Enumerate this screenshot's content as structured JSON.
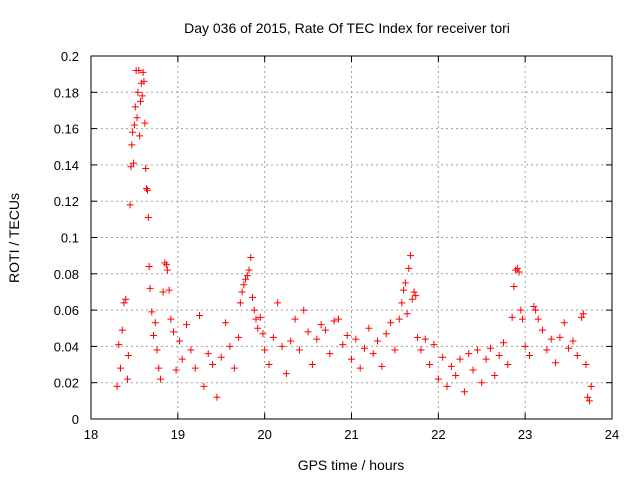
{
  "chart_data": {
    "type": "scatter",
    "title": "Day 036 of 2015, Rate Of TEC Index for receiver tori",
    "xlabel": "GPS time / hours",
    "ylabel": "ROTI / TECUs",
    "xlim": [
      18,
      24
    ],
    "ylim": [
      0,
      0.2
    ],
    "xticks": [
      "18",
      "19",
      "20",
      "21",
      "22",
      "23",
      "24"
    ],
    "yticks": [
      "0",
      "0.02",
      "0.04",
      "0.06",
      "0.08",
      "0.1",
      "0.12",
      "0.14",
      "0.16",
      "0.18",
      "0.2"
    ],
    "grid": true,
    "marker": "+",
    "marker_color": "#ff0000",
    "series": [
      {
        "name": "ROTI",
        "points": [
          [
            18.3,
            0.018
          ],
          [
            18.32,
            0.041
          ],
          [
            18.34,
            0.028
          ],
          [
            18.36,
            0.049
          ],
          [
            18.38,
            0.064
          ],
          [
            18.4,
            0.066
          ],
          [
            18.42,
            0.022
          ],
          [
            18.43,
            0.035
          ],
          [
            18.45,
            0.118
          ],
          [
            18.46,
            0.139
          ],
          [
            18.47,
            0.151
          ],
          [
            18.48,
            0.158
          ],
          [
            18.49,
            0.141
          ],
          [
            18.5,
            0.162
          ],
          [
            18.51,
            0.172
          ],
          [
            18.52,
            0.192
          ],
          [
            18.53,
            0.166
          ],
          [
            18.54,
            0.18
          ],
          [
            18.55,
            0.192
          ],
          [
            18.56,
            0.156
          ],
          [
            18.57,
            0.175
          ],
          [
            18.58,
            0.185
          ],
          [
            18.59,
            0.178
          ],
          [
            18.6,
            0.191
          ],
          [
            18.61,
            0.186
          ],
          [
            18.62,
            0.163
          ],
          [
            18.63,
            0.138
          ],
          [
            18.64,
            0.127
          ],
          [
            18.65,
            0.126
          ],
          [
            18.66,
            0.111
          ],
          [
            18.67,
            0.084
          ],
          [
            18.68,
            0.072
          ],
          [
            18.7,
            0.059
          ],
          [
            18.72,
            0.046
          ],
          [
            18.74,
            0.053
          ],
          [
            18.76,
            0.038
          ],
          [
            18.78,
            0.028
          ],
          [
            18.8,
            0.022
          ],
          [
            18.83,
            0.07
          ],
          [
            18.85,
            0.086
          ],
          [
            18.87,
            0.085
          ],
          [
            18.88,
            0.082
          ],
          [
            18.9,
            0.071
          ],
          [
            18.92,
            0.055
          ],
          [
            18.95,
            0.048
          ],
          [
            18.98,
            0.027
          ],
          [
            19.02,
            0.043
          ],
          [
            19.05,
            0.033
          ],
          [
            19.1,
            0.052
          ],
          [
            19.15,
            0.038
          ],
          [
            19.2,
            0.028
          ],
          [
            19.25,
            0.057
          ],
          [
            19.3,
            0.018
          ],
          [
            19.35,
            0.036
          ],
          [
            19.4,
            0.03
          ],
          [
            19.45,
            0.012
          ],
          [
            19.5,
            0.034
          ],
          [
            19.55,
            0.053
          ],
          [
            19.6,
            0.04
          ],
          [
            19.65,
            0.028
          ],
          [
            19.7,
            0.045
          ],
          [
            19.72,
            0.064
          ],
          [
            19.74,
            0.07
          ],
          [
            19.76,
            0.074
          ],
          [
            19.78,
            0.077
          ],
          [
            19.8,
            0.079
          ],
          [
            19.82,
            0.082
          ],
          [
            19.84,
            0.089
          ],
          [
            19.86,
            0.067
          ],
          [
            19.88,
            0.06
          ],
          [
            19.9,
            0.055
          ],
          [
            19.92,
            0.05
          ],
          [
            19.95,
            0.056
          ],
          [
            19.98,
            0.047
          ],
          [
            20.0,
            0.038
          ],
          [
            20.05,
            0.03
          ],
          [
            20.1,
            0.045
          ],
          [
            20.15,
            0.064
          ],
          [
            20.2,
            0.04
          ],
          [
            20.25,
            0.025
          ],
          [
            20.3,
            0.043
          ],
          [
            20.35,
            0.055
          ],
          [
            20.4,
            0.038
          ],
          [
            20.45,
            0.06
          ],
          [
            20.5,
            0.048
          ],
          [
            20.55,
            0.03
          ],
          [
            20.6,
            0.044
          ],
          [
            20.65,
            0.052
          ],
          [
            20.7,
            0.049
          ],
          [
            20.75,
            0.036
          ],
          [
            20.8,
            0.054
          ],
          [
            20.85,
            0.055
          ],
          [
            20.9,
            0.041
          ],
          [
            20.95,
            0.046
          ],
          [
            21.0,
            0.033
          ],
          [
            21.05,
            0.044
          ],
          [
            21.1,
            0.028
          ],
          [
            21.15,
            0.039
          ],
          [
            21.2,
            0.05
          ],
          [
            21.25,
            0.036
          ],
          [
            21.3,
            0.043
          ],
          [
            21.35,
            0.029
          ],
          [
            21.4,
            0.047
          ],
          [
            21.45,
            0.053
          ],
          [
            21.5,
            0.038
          ],
          [
            21.55,
            0.055
          ],
          [
            21.58,
            0.064
          ],
          [
            21.6,
            0.071
          ],
          [
            21.62,
            0.075
          ],
          [
            21.64,
            0.058
          ],
          [
            21.66,
            0.083
          ],
          [
            21.68,
            0.09
          ],
          [
            21.7,
            0.066
          ],
          [
            21.72,
            0.07
          ],
          [
            21.74,
            0.068
          ],
          [
            21.76,
            0.045
          ],
          [
            21.8,
            0.038
          ],
          [
            21.85,
            0.044
          ],
          [
            21.9,
            0.03
          ],
          [
            21.95,
            0.041
          ],
          [
            22.0,
            0.022
          ],
          [
            22.05,
            0.034
          ],
          [
            22.1,
            0.018
          ],
          [
            22.15,
            0.029
          ],
          [
            22.2,
            0.024
          ],
          [
            22.25,
            0.033
          ],
          [
            22.3,
            0.015
          ],
          [
            22.35,
            0.036
          ],
          [
            22.4,
            0.027
          ],
          [
            22.45,
            0.038
          ],
          [
            22.5,
            0.02
          ],
          [
            22.55,
            0.033
          ],
          [
            22.6,
            0.039
          ],
          [
            22.65,
            0.024
          ],
          [
            22.7,
            0.035
          ],
          [
            22.75,
            0.042
          ],
          [
            22.8,
            0.03
          ],
          [
            22.85,
            0.056
          ],
          [
            22.87,
            0.073
          ],
          [
            22.89,
            0.082
          ],
          [
            22.91,
            0.083
          ],
          [
            22.93,
            0.081
          ],
          [
            22.95,
            0.06
          ],
          [
            22.97,
            0.055
          ],
          [
            23.0,
            0.04
          ],
          [
            23.05,
            0.035
          ],
          [
            23.1,
            0.062
          ],
          [
            23.12,
            0.06
          ],
          [
            23.15,
            0.055
          ],
          [
            23.2,
            0.049
          ],
          [
            23.25,
            0.038
          ],
          [
            23.3,
            0.044
          ],
          [
            23.35,
            0.031
          ],
          [
            23.4,
            0.045
          ],
          [
            23.45,
            0.053
          ],
          [
            23.5,
            0.039
          ],
          [
            23.55,
            0.043
          ],
          [
            23.6,
            0.035
          ],
          [
            23.65,
            0.056
          ],
          [
            23.67,
            0.058
          ],
          [
            23.7,
            0.03
          ],
          [
            23.72,
            0.012
          ],
          [
            23.74,
            0.01
          ],
          [
            23.76,
            0.018
          ]
        ]
      }
    ]
  }
}
